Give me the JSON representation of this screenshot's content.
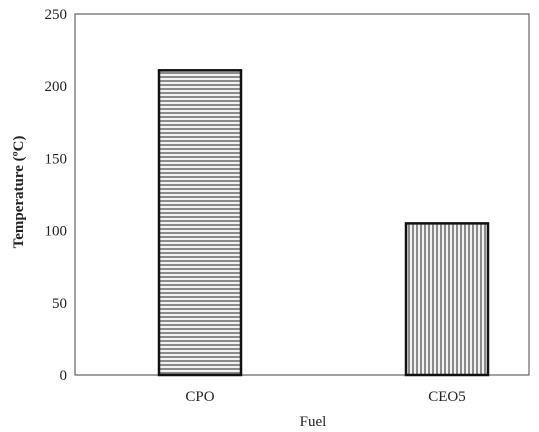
{
  "chart_data": {
    "type": "bar",
    "categories": [
      "CPO",
      "CEO5"
    ],
    "values": [
      211,
      105
    ],
    "xlabel": "Fuel",
    "ylabel": "Temperature (ºC)",
    "ylim": [
      0,
      250
    ],
    "yticks": [
      0,
      50,
      100,
      150,
      200,
      250
    ],
    "grid": false,
    "legend": "none",
    "patterns": [
      "horizontal-stripes",
      "vertical-stripes"
    ],
    "colors": {
      "frame": "#444444",
      "bar_outline": "#111111",
      "stripe": "#8a8a8a",
      "bar_fill": "#f2f2f2"
    }
  }
}
